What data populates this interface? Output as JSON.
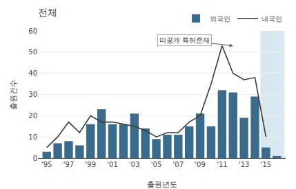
{
  "chart_data": {
    "type": "bar",
    "title": "전체",
    "x_label": "출원년도",
    "y_label": "출원건수",
    "x": [
      1995,
      1996,
      1997,
      1998,
      1999,
      2000,
      2001,
      2002,
      2003,
      2004,
      2005,
      2006,
      2007,
      2008,
      2009,
      2010,
      2011,
      2012,
      2013,
      2014,
      2015,
      2016
    ],
    "series": [
      {
        "name": "외국인",
        "type": "bar",
        "color": "#3a6b8a",
        "values": [
          3,
          7,
          8,
          6,
          16,
          23,
          16,
          16,
          21,
          14,
          9,
          11,
          11,
          15,
          21,
          15,
          32,
          31,
          19,
          29,
          5,
          1
        ]
      },
      {
        "name": "내국인",
        "type": "line",
        "color": "#3a3a3a",
        "values": [
          5,
          10,
          17,
          12,
          20,
          17,
          17,
          16,
          15,
          13,
          10,
          12,
          12,
          17,
          20,
          35,
          53,
          40,
          37,
          38,
          10,
          null
        ]
      }
    ],
    "xlim": [
      1994.2,
      2016.8
    ],
    "xticks": [
      {
        "value": 1995,
        "label": "'95"
      },
      {
        "value": 1997,
        "label": "'97"
      },
      {
        "value": 1999,
        "label": "'99"
      },
      {
        "value": 2001,
        "label": "'01"
      },
      {
        "value": 2003,
        "label": "'03"
      },
      {
        "value": 2005,
        "label": "'05"
      },
      {
        "value": 2007,
        "label": "'07"
      },
      {
        "value": 2009,
        "label": "'09"
      },
      {
        "value": 2011,
        "label": "'11"
      },
      {
        "value": 2013,
        "label": "'13"
      },
      {
        "value": 2015,
        "label": "'15"
      }
    ],
    "ylim": [
      0,
      60
    ],
    "yticks": [
      0,
      10,
      20,
      30,
      40,
      50,
      60
    ],
    "grid": true,
    "legend": "top right",
    "annotations": [
      {
        "text": "미공개 특허존재",
        "x": 2012,
        "y": 53
      }
    ],
    "shaded_region": {
      "x0": 2014.5,
      "x1": 2016.7,
      "color": "#d8e8f0"
    }
  }
}
